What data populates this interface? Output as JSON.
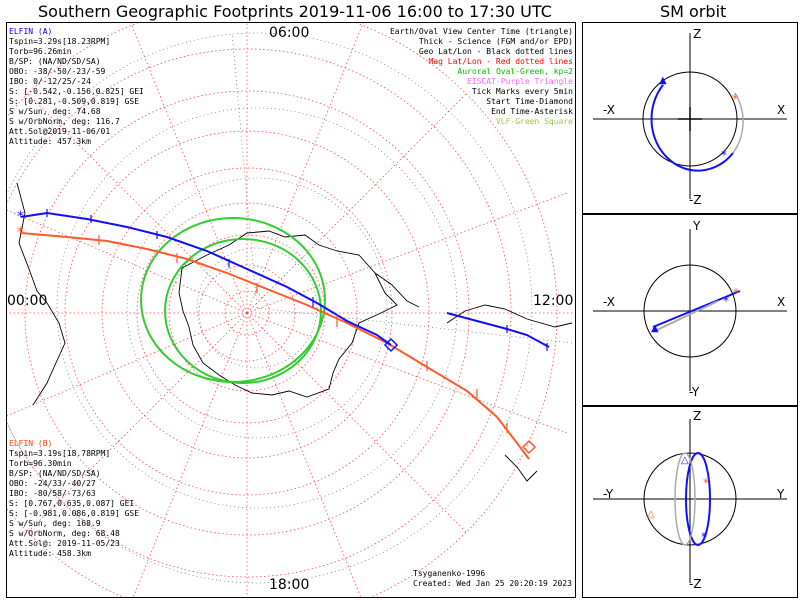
{
  "title": "Southern Geographic Footprints 2019-11-06 16:00 to 17:30 UTC",
  "orbit_title": "SM orbit",
  "time_labels": {
    "top": "06:00",
    "left": "00:00",
    "right": "12:00",
    "bottom": "18:00"
  },
  "elfin_a": {
    "color": "#0000ff",
    "lines": [
      "ELFIN (A)",
      "Tspin=3.29s[18.23RPM]",
      "Torb=96.26min",
      "B/SP: (NA/ND/SD/SA)",
      "OBO: -38/-50/-23/-59",
      "IBO: 0/-12/25/-24",
      "S: [-0.542,-0.156,0.825] GEI",
      "S: [0.281,-0.509,0.819] GSE",
      "S w/Sun, deg: 74.68",
      "S w/OrbNorm, deg: 116.7",
      "Att.Sol@2019-11-06/01",
      "Altitude: 457.3km"
    ]
  },
  "elfin_b": {
    "color": "#ff4000",
    "lines": [
      "ELFIN (B)",
      "Tspin=3.19s[18.78RPM]",
      "Torb=96.30min",
      "B/SP: (NA/ND/SD/SA)",
      "OBO: -24/33/-40/27",
      "IBO: -80/58/-73/63",
      "S: [0.767,0.635,0.087] GEI",
      "S: [-0.981,0.086,0.819] GSE",
      "S w/Sun, deg: 168.9",
      "S w/OrbNorm, deg: 68.48",
      "Att.Sol@: 2019-11-05/23",
      "Altitude: 458.3km"
    ]
  },
  "legend": [
    {
      "text": "Earth/Oval View Center Time (triangle)",
      "color": "#000000"
    },
    {
      "text": "Thick - Science (FGM and/or EPD)",
      "color": "#000000"
    },
    {
      "text": "Geo Lat/Lon - Black dotted lines",
      "color": "#000000"
    },
    {
      "text": "Mag Lat/Lon - Red dotted lines",
      "color": "#ff0000"
    },
    {
      "text": "Auroral Oval-Green, kp=2",
      "color": "#00c000"
    },
    {
      "text": "EISCAT-Purple Triangle",
      "color": "#ff66ff"
    },
    {
      "text": "Tick Marks every 5min",
      "color": "#000000"
    },
    {
      "text": "Start Time-Diamond",
      "color": "#000000"
    },
    {
      "text": "End Time-Asterisk",
      "color": "#000000"
    },
    {
      "text": "VLF-Green Square",
      "color": "#99cc33"
    }
  ],
  "footer": {
    "model": "Tsyganenko-1996",
    "created": "Created: Wed Jan 25 20:20:19 2023"
  },
  "orbit_panels": [
    {
      "top": "Z",
      "bottom": "-Z",
      "left": "-X",
      "right": "X"
    },
    {
      "top": "Y",
      "bottom": "-Y",
      "left": "-X",
      "right": "X"
    },
    {
      "top": "Z",
      "bottom": "-Z",
      "left": "-Y",
      "right": "Y"
    }
  ]
}
